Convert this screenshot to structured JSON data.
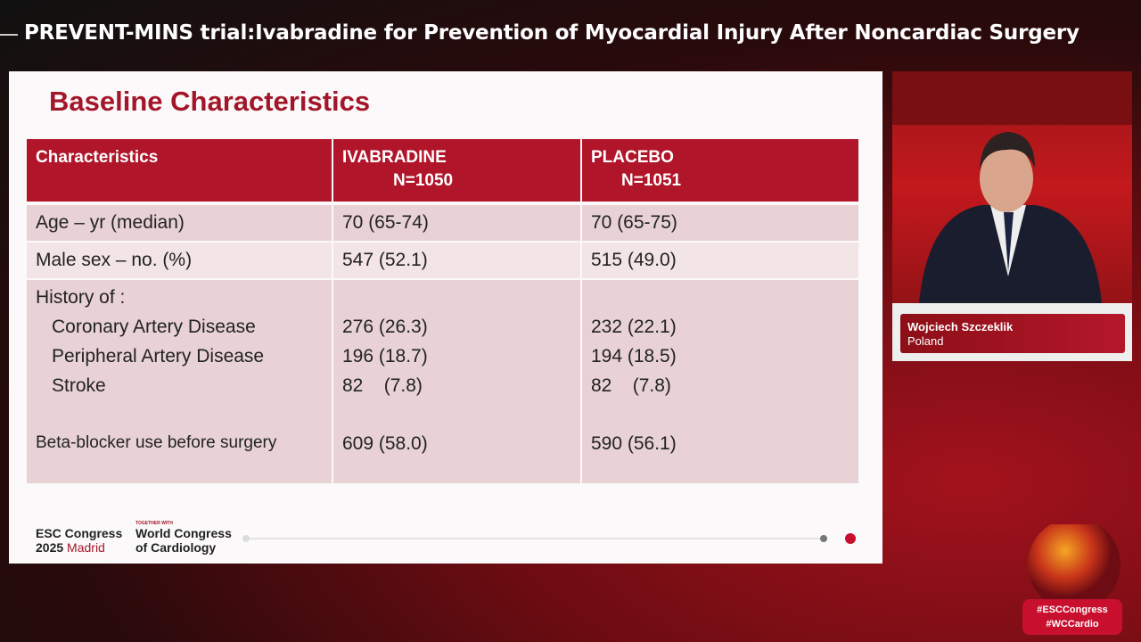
{
  "header": {
    "title": "PREVENT-MINS trial:Ivabradine for Prevention of Myocardial Injury After Noncardiac Surgery"
  },
  "slide": {
    "title": "Baseline Characteristics",
    "table": {
      "columns": [
        {
          "label": "Characteristics"
        },
        {
          "label": "IVABRADINE",
          "n": "N=1050"
        },
        {
          "label": "PLACEBO",
          "n": "N=1051"
        }
      ],
      "rows": [
        [
          "Age – yr (median)",
          "70 (65-74)",
          "70 (65-75)"
        ],
        [
          "Male sex – no. (%)",
          "547 (52.1)",
          "515 (49.0)"
        ]
      ],
      "history": {
        "label": "History of :",
        "items": [
          [
            "Coronary Artery Disease",
            "276 (26.3)",
            "232 (22.1)"
          ],
          [
            "Peripheral Artery Disease",
            "196 (18.7)",
            "194 (18.5)"
          ],
          [
            "Stroke",
            "82    (7.8)",
            "82    (7.8)"
          ]
        ]
      },
      "beta_blocker": [
        "Beta-blocker use before surgery",
        "609 (58.0)",
        "590 (56.1)"
      ]
    },
    "footer": {
      "esc_line1": "ESC Congress",
      "esc_year": "2025",
      "esc_city": "Madrid",
      "together": "TOGETHER WITH",
      "wcc_line1": "World Congress",
      "wcc_line2": "of Cardiology"
    }
  },
  "speaker": {
    "name": "Wojciech Szczeklik",
    "country": "Poland"
  },
  "hashtags": [
    "#ESCCongress",
    "#WCCardio"
  ]
}
